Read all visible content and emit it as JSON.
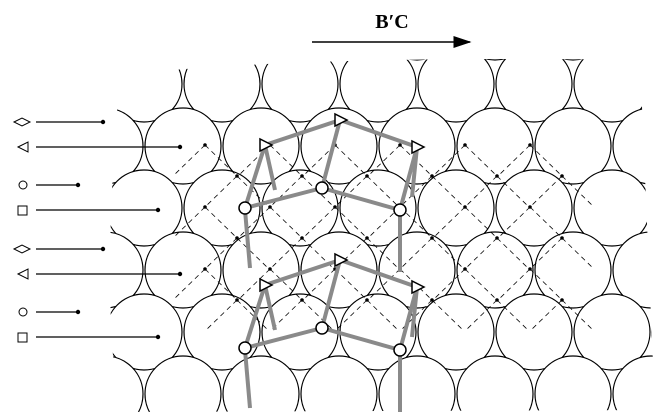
{
  "arrow_label": "B′C"
}
